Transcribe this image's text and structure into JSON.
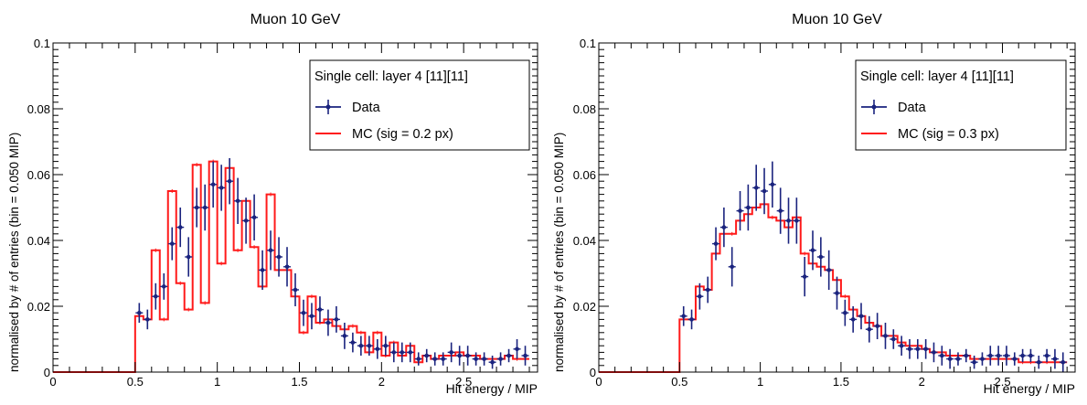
{
  "chart_data": [
    {
      "type": "step-histogram",
      "title": "Muon 10 GeV",
      "xlabel": "Hit energy / MIP",
      "ylabel": "normalised by # of entries (bin = 0.050 MIP)",
      "xlim": [
        0,
        2.95
      ],
      "ylim": [
        0,
        0.1
      ],
      "xticks": [
        {
          "v": 0,
          "label": "0"
        },
        {
          "v": 0.5,
          "label": "0.5"
        },
        {
          "v": 1,
          "label": "1"
        },
        {
          "v": 1.5,
          "label": "1.5"
        },
        {
          "v": 2,
          "label": "2"
        },
        {
          "v": 2.5,
          "label": "2.5"
        }
      ],
      "yticks": [
        {
          "v": 0,
          "label": "0"
        },
        {
          "v": 0.02,
          "label": "0.02"
        },
        {
          "v": 0.04,
          "label": "0.04"
        },
        {
          "v": 0.06,
          "label": "0.06"
        },
        {
          "v": 0.08,
          "label": "0.08"
        },
        {
          "v": 0.1,
          "label": "0.1"
        }
      ],
      "grid": false,
      "legend": {
        "position": "top-right",
        "header": "Single cell: layer 4 [11][11]",
        "entries": [
          "Data",
          "MC (sig = 0.2 px)"
        ]
      },
      "bin_start": 0.5,
      "bin_width": 0.05,
      "colors": {
        "data": "#1a237e",
        "mc": "#ff1a1a",
        "mc_fill": "#ffcccc"
      },
      "series": [
        {
          "name": "Data",
          "style": "points-with-errors",
          "values": [
            0.018,
            0.016,
            0.023,
            0.026,
            0.039,
            0.044,
            0.035,
            0.05,
            0.05,
            0.057,
            0.056,
            0.058,
            0.052,
            0.046,
            0.047,
            0.031,
            0.037,
            0.035,
            0.032,
            0.025,
            0.018,
            0.017,
            0.019,
            0.015,
            0.016,
            0.011,
            0.009,
            0.008,
            0.008,
            0.007,
            0.008,
            0.006,
            0.006,
            0.006,
            0.004,
            0.005,
            0.004,
            0.004,
            0.006,
            0.005,
            0.005,
            0.004,
            0.004,
            0.003,
            0.004,
            0.005,
            0.007,
            0.005
          ],
          "errors": [
            0.003,
            0.003,
            0.004,
            0.004,
            0.005,
            0.006,
            0.006,
            0.006,
            0.007,
            0.007,
            0.007,
            0.007,
            0.007,
            0.007,
            0.007,
            0.006,
            0.006,
            0.006,
            0.006,
            0.005,
            0.004,
            0.004,
            0.004,
            0.004,
            0.004,
            0.004,
            0.003,
            0.003,
            0.003,
            0.003,
            0.003,
            0.003,
            0.003,
            0.003,
            0.002,
            0.002,
            0.002,
            0.002,
            0.003,
            0.003,
            0.003,
            0.002,
            0.002,
            0.002,
            0.002,
            0.002,
            0.003,
            0.003
          ]
        },
        {
          "name": "MC (sig = 0.2 px)",
          "style": "step",
          "values": [
            0.017,
            0.016,
            0.037,
            0.016,
            0.055,
            0.027,
            0.019,
            0.063,
            0.021,
            0.064,
            0.033,
            0.062,
            0.037,
            0.052,
            0.038,
            0.026,
            0.054,
            0.031,
            0.031,
            0.023,
            0.012,
            0.023,
            0.015,
            0.016,
            0.014,
            0.013,
            0.014,
            0.012,
            0.006,
            0.012,
            0.005,
            0.009,
            0.005,
            0.008,
            0.003,
            0.005,
            0.004,
            0.005,
            0.005,
            0.006,
            0.005,
            0.005,
            0.004,
            0.004,
            0.004,
            0.005,
            0.004,
            0.004
          ]
        }
      ]
    },
    {
      "type": "step-histogram",
      "title": "Muon 10 GeV",
      "xlabel": "Hit energy / MIP",
      "ylabel": "normalised by # of entries (bin = 0.050 MIP)",
      "xlim": [
        0,
        2.95
      ],
      "ylim": [
        0,
        0.1
      ],
      "xticks": [
        {
          "v": 0,
          "label": "0"
        },
        {
          "v": 0.5,
          "label": "0.5"
        },
        {
          "v": 1,
          "label": "1"
        },
        {
          "v": 1.5,
          "label": "1.5"
        },
        {
          "v": 2,
          "label": "2"
        },
        {
          "v": 2.5,
          "label": "2.5"
        }
      ],
      "yticks": [
        {
          "v": 0,
          "label": "0"
        },
        {
          "v": 0.02,
          "label": "0.02"
        },
        {
          "v": 0.04,
          "label": "0.04"
        },
        {
          "v": 0.06,
          "label": "0.06"
        },
        {
          "v": 0.08,
          "label": "0.08"
        },
        {
          "v": 0.1,
          "label": "0.1"
        }
      ],
      "grid": false,
      "legend": {
        "position": "top-right",
        "header": "Single cell: layer 4 [11][11]",
        "entries": [
          "Data",
          "MC (sig = 0.3 px)"
        ]
      },
      "bin_start": 0.5,
      "bin_width": 0.05,
      "colors": {
        "data": "#1a237e",
        "mc": "#ff1a1a",
        "mc_fill": "#ffcccc"
      },
      "series": [
        {
          "name": "Data",
          "style": "points-with-errors",
          "values": [
            0.017,
            0.016,
            0.023,
            0.025,
            0.039,
            0.044,
            0.032,
            0.049,
            0.05,
            0.056,
            0.055,
            0.057,
            0.049,
            0.046,
            0.046,
            0.029,
            0.037,
            0.035,
            0.031,
            0.024,
            0.018,
            0.016,
            0.017,
            0.013,
            0.014,
            0.011,
            0.01,
            0.008,
            0.007,
            0.007,
            0.007,
            0.006,
            0.005,
            0.004,
            0.004,
            0.005,
            0.003,
            0.004,
            0.005,
            0.005,
            0.005,
            0.004,
            0.005,
            0.005,
            0.003,
            0.005,
            0.004,
            0.003
          ],
          "errors": [
            0.003,
            0.003,
            0.004,
            0.004,
            0.005,
            0.006,
            0.006,
            0.006,
            0.007,
            0.007,
            0.007,
            0.007,
            0.007,
            0.007,
            0.007,
            0.006,
            0.006,
            0.006,
            0.006,
            0.005,
            0.004,
            0.004,
            0.004,
            0.004,
            0.004,
            0.004,
            0.003,
            0.003,
            0.003,
            0.003,
            0.003,
            0.003,
            0.003,
            0.003,
            0.002,
            0.002,
            0.002,
            0.002,
            0.003,
            0.003,
            0.003,
            0.002,
            0.002,
            0.002,
            0.002,
            0.002,
            0.003,
            0.003
          ]
        },
        {
          "name": "MC (sig = 0.3 px)",
          "style": "step",
          "values": [
            0.016,
            0.016,
            0.026,
            0.025,
            0.036,
            0.042,
            0.042,
            0.046,
            0.048,
            0.05,
            0.051,
            0.047,
            0.046,
            0.044,
            0.047,
            0.036,
            0.033,
            0.032,
            0.031,
            0.028,
            0.023,
            0.019,
            0.017,
            0.015,
            0.014,
            0.011,
            0.011,
            0.009,
            0.008,
            0.008,
            0.007,
            0.006,
            0.006,
            0.005,
            0.005,
            0.005,
            0.004,
            0.004,
            0.004,
            0.004,
            0.004,
            0.004,
            0.003,
            0.003,
            0.003,
            0.003,
            0.003,
            0.003
          ]
        }
      ]
    }
  ]
}
